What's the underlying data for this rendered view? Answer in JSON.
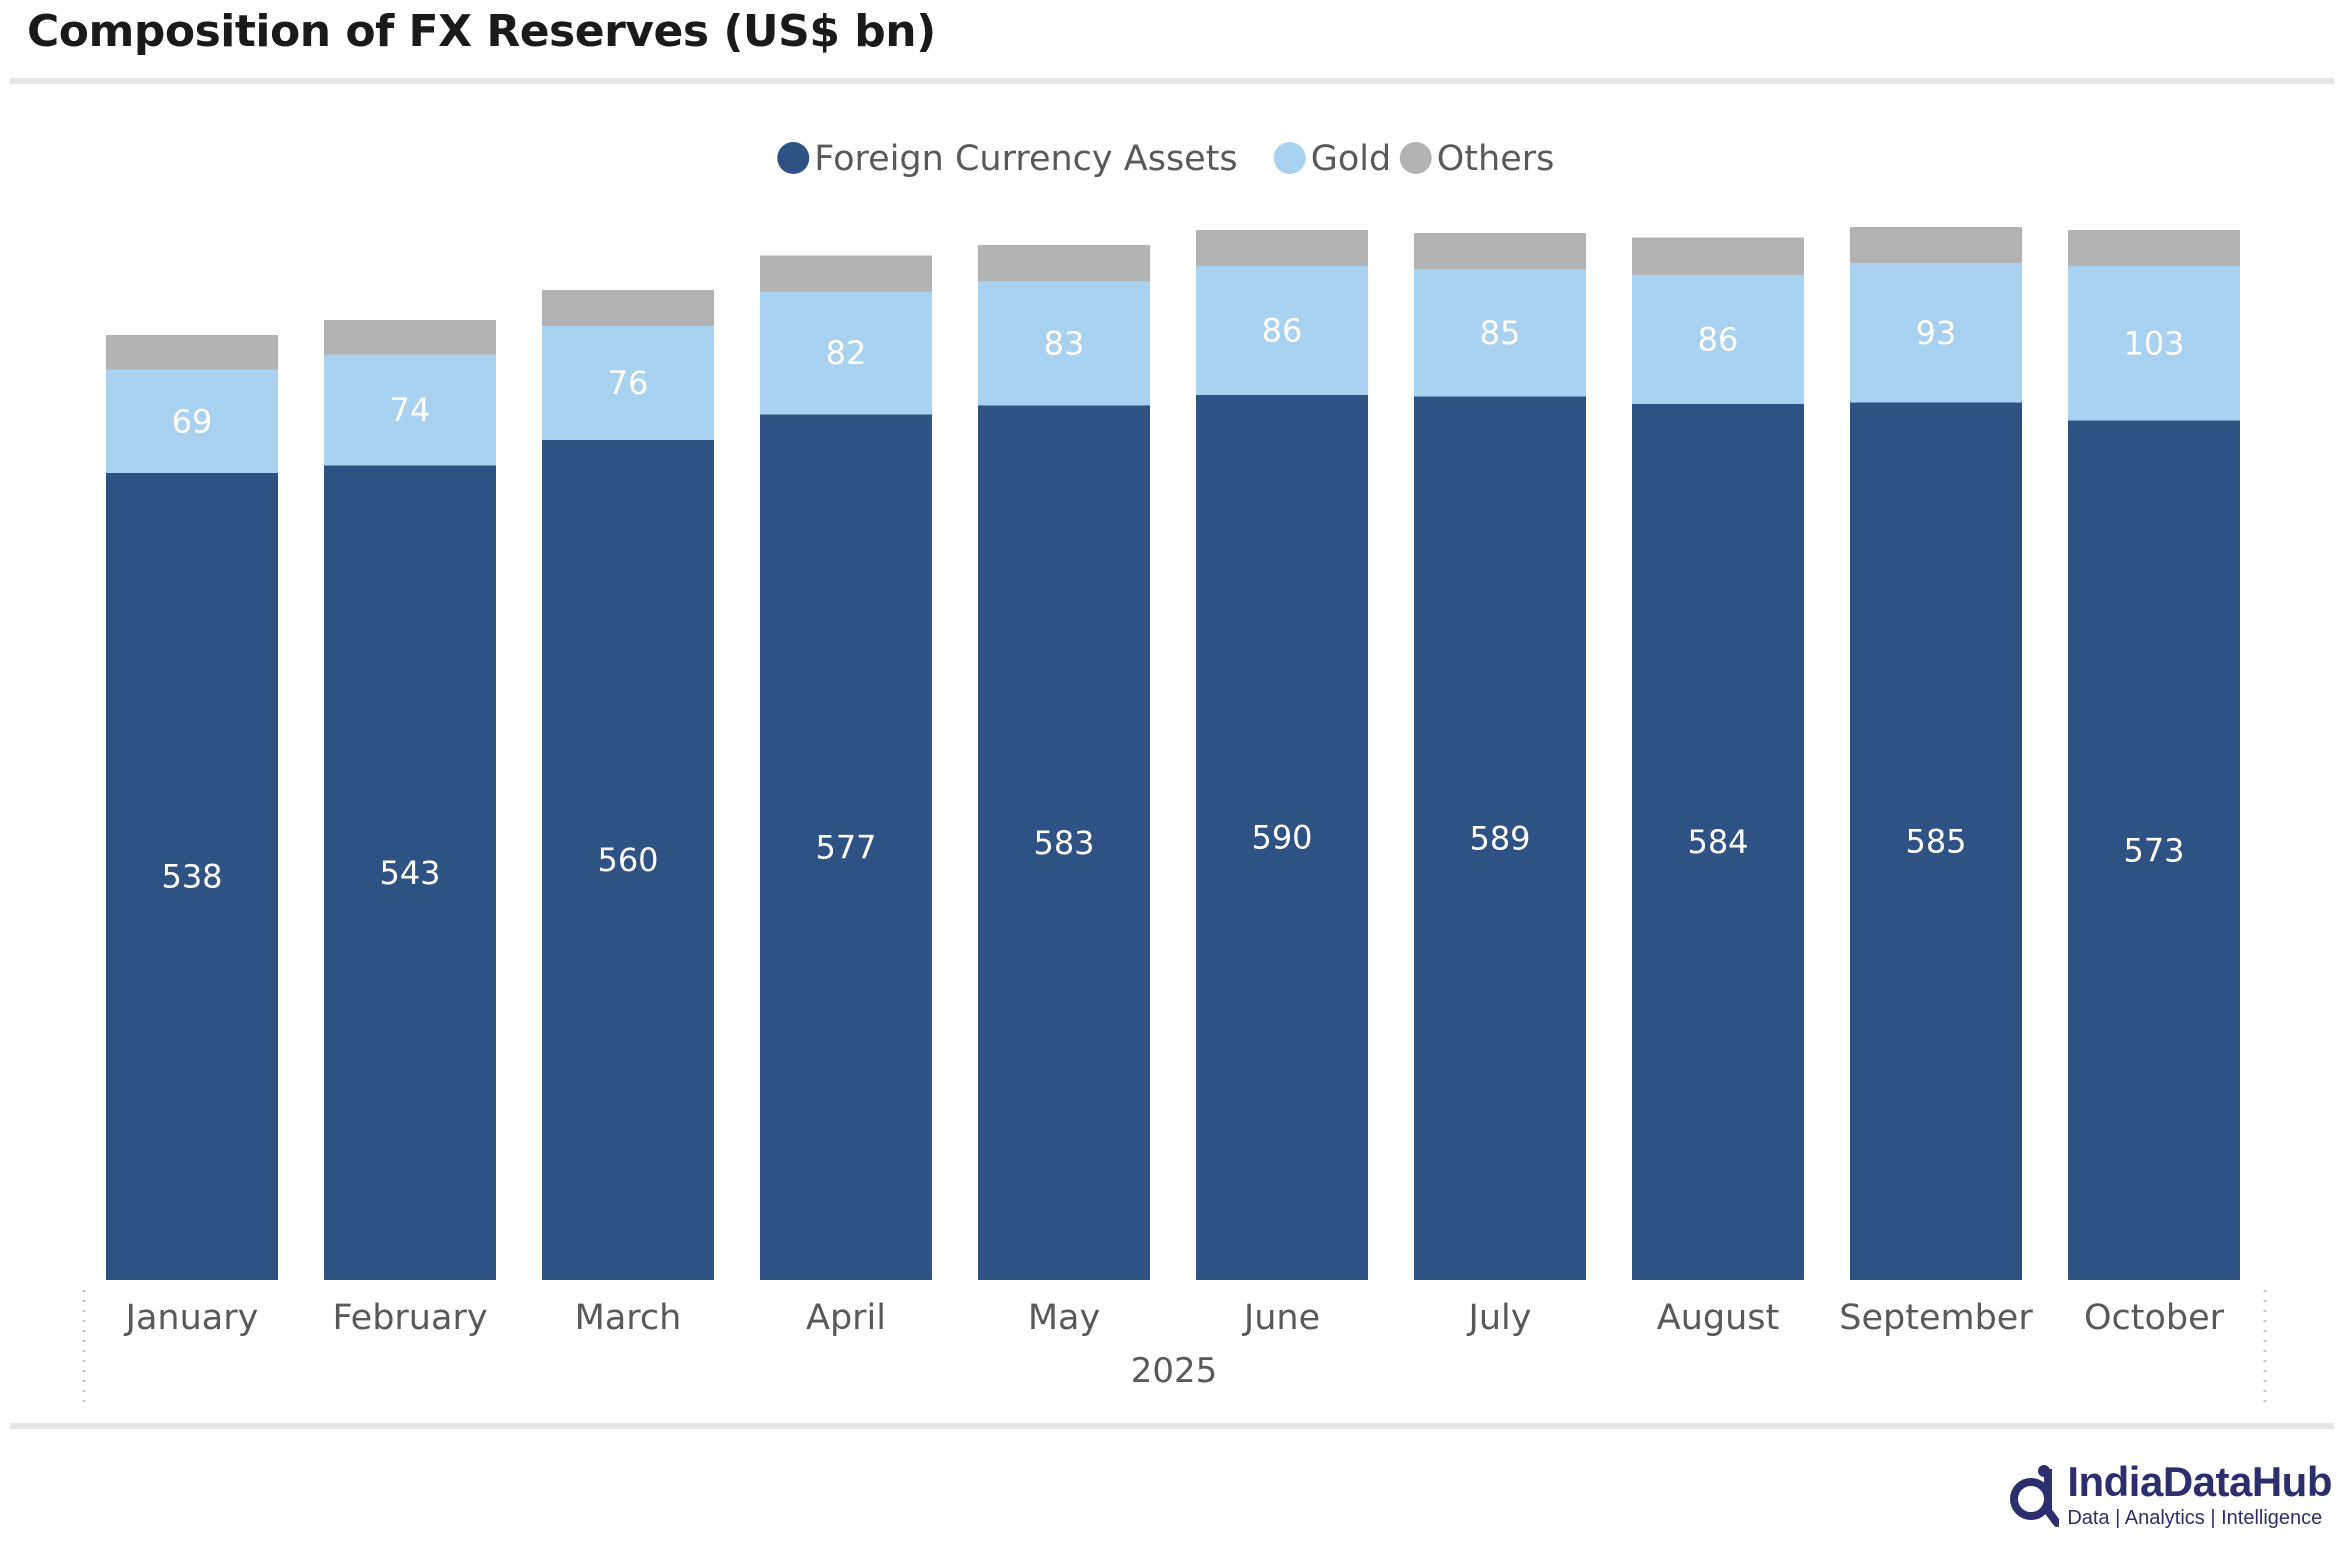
{
  "title": "Composition of FX Reserves (US$ bn)",
  "colors": {
    "fca": "#2e5284",
    "gold": "#a9d1f0",
    "others": "#b3b3b3",
    "axis_text": "#595959"
  },
  "brand": {
    "name": "IndiaDataHub",
    "tagline": "Data | Analytics | Intelligence"
  },
  "chart_data": {
    "type": "bar",
    "stacked": true,
    "title": "Composition of FX Reserves (US$ bn)",
    "categories": [
      "January",
      "February",
      "March",
      "April",
      "May",
      "June",
      "July",
      "August",
      "September",
      "October"
    ],
    "x_group_label": "2025",
    "legend_position": "top-center",
    "grid": false,
    "ylim": [
      0,
      720
    ],
    "series": [
      {
        "name": "Foreign Currency Assets",
        "color": "#2e5284",
        "values": [
          538,
          543,
          560,
          577,
          583,
          590,
          589,
          584,
          585,
          573
        ],
        "labels_shown": true
      },
      {
        "name": "Gold",
        "color": "#a9d1f0",
        "values": [
          69,
          74,
          76,
          82,
          83,
          86,
          85,
          86,
          93,
          103
        ],
        "labels_shown": true
      },
      {
        "name": "Others",
        "color": "#b3b3b3",
        "values": [
          23,
          23,
          24,
          24,
          24,
          24,
          24,
          25,
          24,
          24
        ],
        "labels_shown": false
      }
    ]
  }
}
